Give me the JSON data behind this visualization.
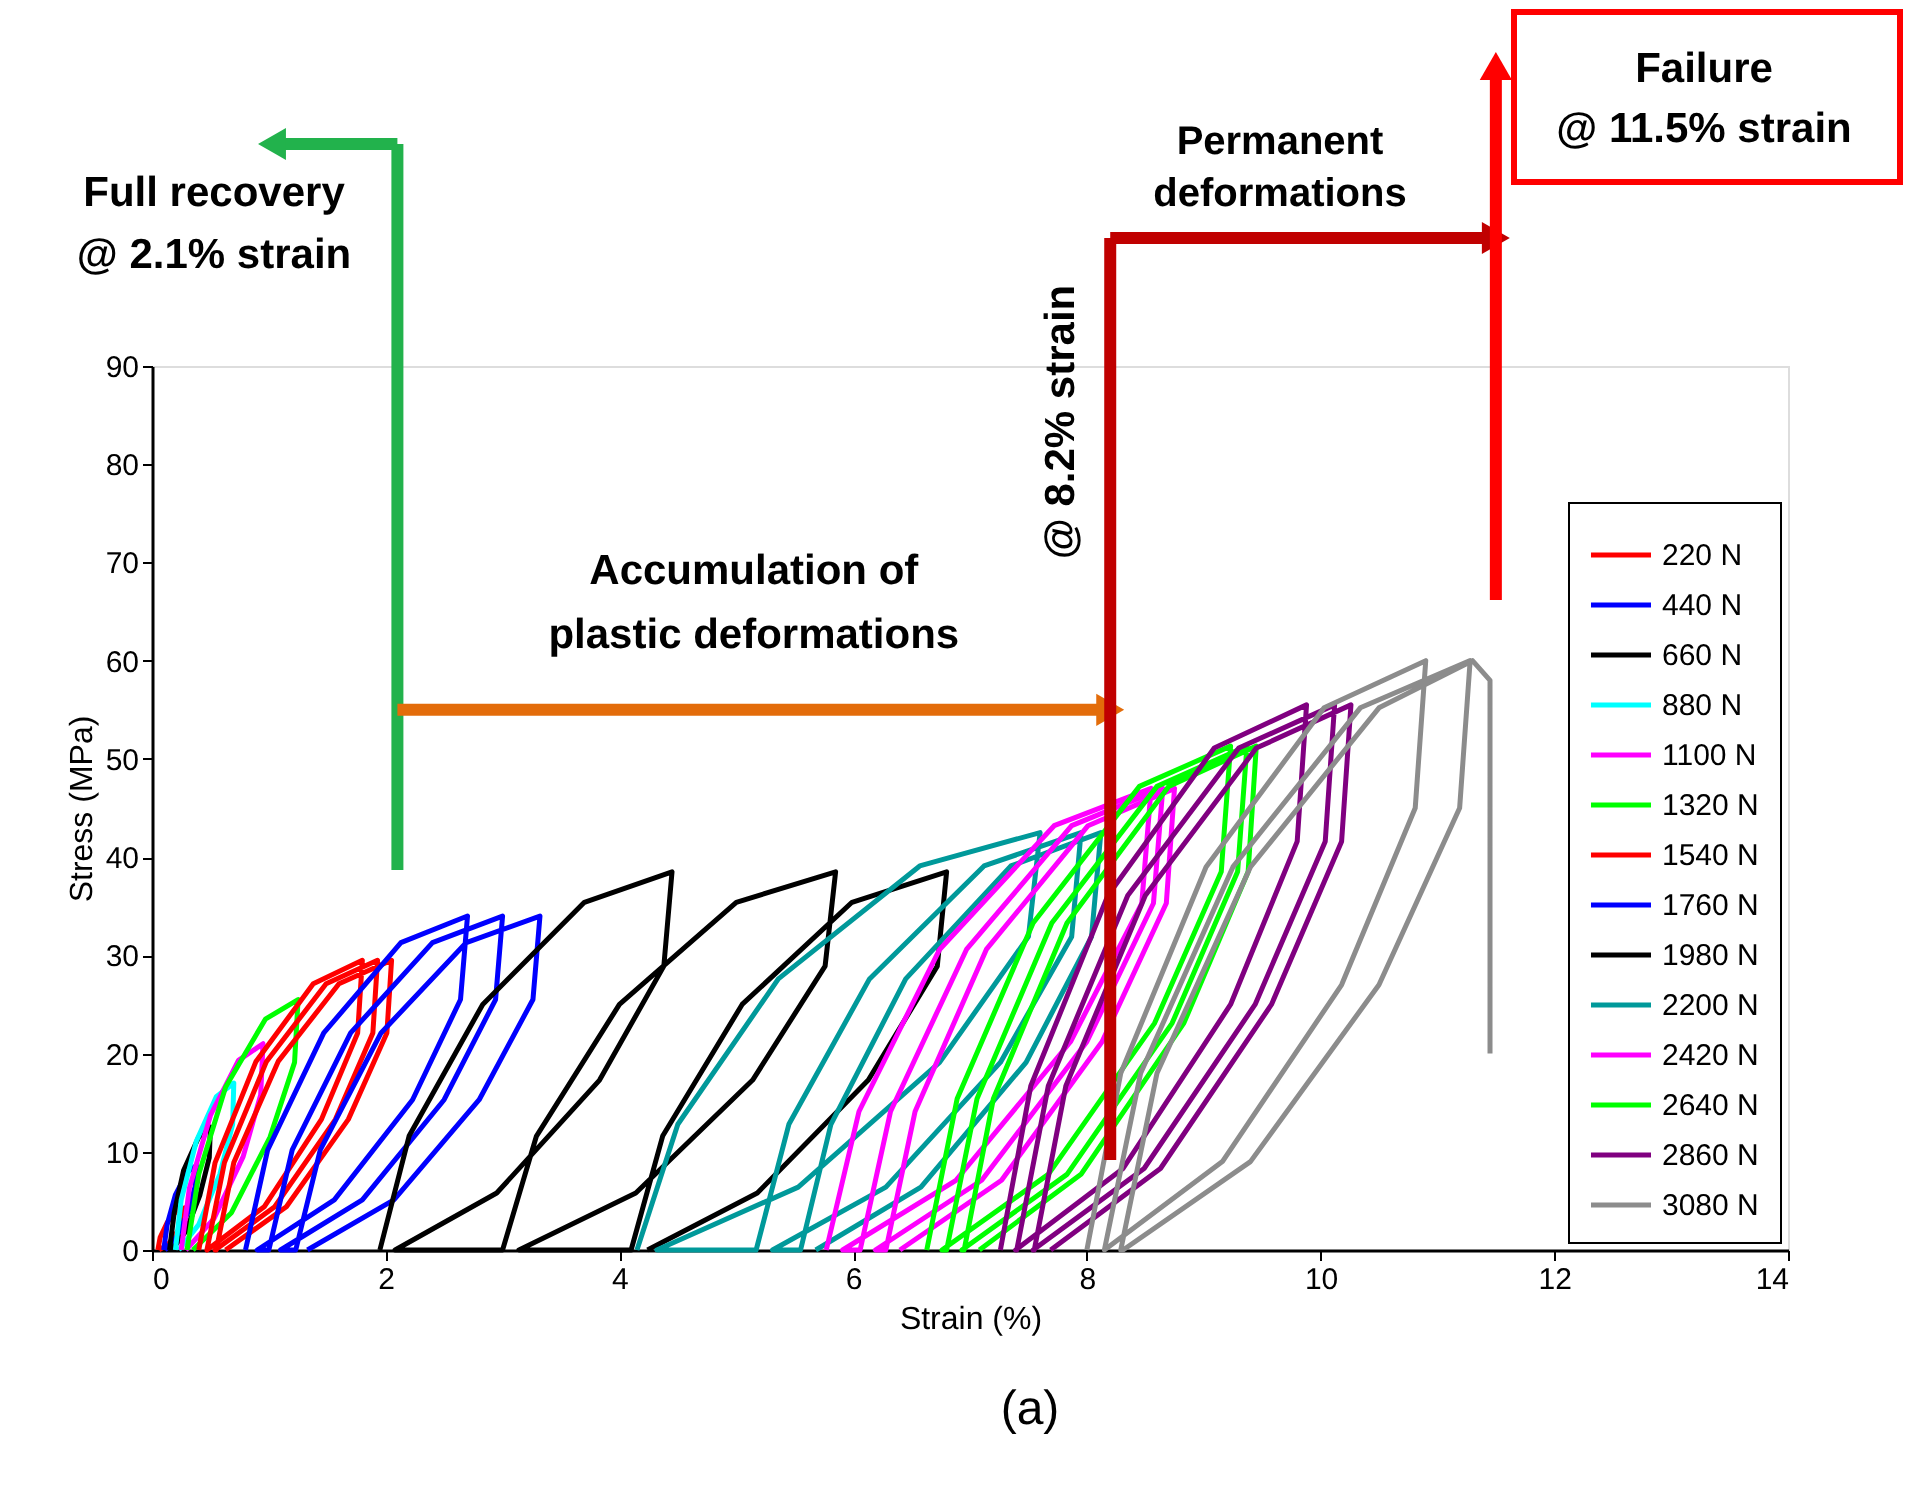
{
  "chart_data": {
    "type": "line",
    "xlabel": "Strain (%)",
    "ylabel": "Stress (MPa)",
    "xlim": [
      0,
      14
    ],
    "xticks": [
      0,
      2,
      4,
      6,
      8,
      10,
      12,
      14
    ],
    "ylim": [
      0,
      90
    ],
    "yticks": [
      0,
      10,
      20,
      30,
      40,
      50,
      60,
      70,
      80,
      90
    ],
    "grid": false,
    "legend": "bottom right",
    "series": [
      {
        "name": "220 N",
        "color": "#ff0000",
        "x": [
          0.05,
          0.07,
          0.13,
          0.21,
          0.28,
          0.27,
          0.22,
          0.14,
          0.06
        ],
        "values": [
          0,
          1.3,
          2.8,
          4.0,
          4.3,
          3.2,
          1.9,
          0.6,
          0
        ]
      },
      {
        "name": "440 N",
        "color": "#0000ff",
        "x": [
          0.1,
          0.13,
          0.2,
          0.3,
          0.38,
          0.37,
          0.31,
          0.21,
          0.11
        ],
        "values": [
          0,
          2.6,
          5.6,
          7.9,
          8.6,
          6.5,
          3.9,
          1.3,
          0
        ]
      },
      {
        "name": "660 N",
        "color": "#000000",
        "x": [
          0.15,
          0.19,
          0.27,
          0.4,
          0.5,
          0.49,
          0.41,
          0.29,
          0.17
        ],
        "values": [
          0,
          3.8,
          8.1,
          11.5,
          12.5,
          9.4,
          5.6,
          1.9,
          0
        ]
      },
      {
        "name": "880 N",
        "color": "#00ffff",
        "x": [
          0.2,
          0.25,
          0.38,
          0.55,
          0.7,
          0.69,
          0.58,
          0.4,
          0.23
        ],
        "values": [
          0,
          5.1,
          11.1,
          15.6,
          17,
          12.8,
          7.7,
          2.6,
          0
        ]
      },
      {
        "name": "1100 N",
        "color": "#ff00ff",
        "x": [
          0.25,
          0.32,
          0.5,
          0.74,
          0.95,
          0.93,
          0.78,
          0.53,
          0.29
        ],
        "values": [
          0,
          6.3,
          13.7,
          19.3,
          21,
          15.8,
          9.5,
          3.2,
          0
        ]
      },
      {
        "name": "1320 N",
        "color": "#00ff00",
        "x": [
          0.3,
          0.4,
          0.63,
          0.97,
          1.25,
          1.22,
          1.01,
          0.68,
          0.35
        ],
        "values": [
          0,
          7.7,
          16.6,
          23.5,
          25.5,
          19.1,
          11.5,
          3.8,
          0
        ]
      },
      {
        "name": "1540 N",
        "color": "#ff0000",
        "x": [
          0.4,
          0.54,
          0.89,
          1.38,
          1.8,
          1.76,
          1.45,
          0.96,
          0.47,
          0.47,
          0.62,
          0.98,
          1.49,
          1.93,
          1.89,
          1.57,
          1.05,
          0.54,
          0.55,
          0.7,
          1.08,
          1.6,
          2.05,
          2.01,
          1.68,
          1.15,
          0.63
        ],
        "values": [
          0,
          8.9,
          19.2,
          27.1,
          29.5,
          22.1,
          13.3,
          4.4,
          0,
          0,
          8.9,
          19.2,
          27.1,
          29.5,
          22.1,
          13.3,
          4.4,
          0,
          0,
          8.9,
          19.2,
          27.1,
          29.5,
          22.1,
          13.3,
          4.4,
          0
        ]
      },
      {
        "name": "1760 N",
        "color": "#0000ff",
        "x": [
          0.8,
          0.99,
          1.47,
          2.13,
          2.7,
          2.64,
          2.23,
          1.56,
          0.9,
          1.0,
          1.2,
          1.7,
          2.4,
          3.0,
          2.94,
          2.5,
          1.8,
          1.1,
          1.23,
          1.44,
          1.96,
          2.69,
          3.32,
          3.26,
          2.8,
          2.07,
          1.33
        ],
        "values": [
          0,
          10.2,
          22.1,
          31.3,
          34,
          25.5,
          15.3,
          5.1,
          0,
          0,
          10.2,
          22.1,
          31.3,
          34,
          25.5,
          15.3,
          5.1,
          0,
          0,
          10.2,
          22.1,
          31.3,
          34,
          25.5,
          15.3,
          5.1,
          0
        ]
      },
      {
        "name": "1980 N",
        "color": "#000000",
        "x": [
          1.95,
          2.2,
          2.83,
          3.7,
          4.45,
          4.38,
          3.83,
          2.95,
          2.08,
          3.0,
          3.29,
          4.0,
          5.0,
          5.85,
          5.76,
          5.14,
          4.14,
          3.14,
          4.1,
          4.37,
          5.05,
          5.99,
          6.8,
          6.72,
          6.13,
          5.18,
          4.24
        ],
        "values": [
          0,
          11.6,
          25,
          35.4,
          38.5,
          28.9,
          17.3,
          5.8,
          0,
          0,
          11.6,
          25,
          35.4,
          38.5,
          28.9,
          17.3,
          5.8,
          0,
          0,
          11.6,
          25,
          35.4,
          38.5,
          28.9,
          17.3,
          5.8,
          0
        ]
      },
      {
        "name": "2200 N",
        "color": "#00999a",
        "x": [
          4.15,
          4.5,
          5.36,
          6.57,
          7.6,
          7.5,
          6.74,
          5.53,
          4.32,
          5.17,
          5.45,
          6.14,
          7.12,
          7.95,
          7.87,
          7.26,
          6.28,
          5.31,
          5.55,
          5.81,
          6.45,
          7.35,
          8.12,
          8.04,
          7.48,
          6.58,
          5.68
        ],
        "values": [
          0,
          12.8,
          27.6,
          39.1,
          42.5,
          31.9,
          19.1,
          6.4,
          0,
          0,
          12.8,
          27.6,
          39.1,
          42.5,
          31.9,
          19.1,
          6.4,
          0,
          0,
          12.8,
          27.6,
          39.1,
          42.5,
          31.9,
          19.1,
          6.4,
          0
        ]
      },
      {
        "name": "2420 N",
        "color": "#ff00ff",
        "x": [
          5.77,
          6.05,
          6.74,
          7.72,
          8.55,
          8.47,
          7.86,
          6.88,
          5.91,
          6.06,
          6.32,
          6.97,
          7.87,
          8.65,
          8.57,
          8.0,
          7.1,
          6.19,
          6.28,
          6.53,
          7.14,
          8.01,
          8.75,
          8.68,
          8.13,
          7.27,
          6.4
        ],
        "values": [
          0,
          14.1,
          30.6,
          43.2,
          47,
          35.3,
          21.2,
          7.1,
          0,
          0,
          14.1,
          30.6,
          43.2,
          47,
          35.3,
          21.2,
          7.1,
          0,
          0,
          14.1,
          30.6,
          43.2,
          47,
          35.3,
          21.2,
          7.1,
          0
        ]
      },
      {
        "name": "2640 N",
        "color": "#00ff00",
        "x": [
          6.63,
          6.89,
          7.54,
          8.45,
          9.23,
          9.15,
          8.58,
          7.67,
          6.76,
          6.8,
          7.06,
          7.7,
          8.6,
          9.37,
          9.29,
          8.73,
          7.83,
          6.93,
          6.95,
          7.2,
          7.83,
          8.7,
          9.45,
          9.38,
          8.83,
          7.95,
          7.08
        ],
        "values": [
          0,
          15.4,
          33.3,
          47.2,
          51.3,
          38.5,
          23.1,
          7.7,
          0,
          0,
          15.4,
          33.3,
          47.2,
          51.3,
          38.5,
          23.1,
          7.7,
          0,
          0,
          15.4,
          33.3,
          47.2,
          51.3,
          38.5,
          23.1,
          7.7,
          0
        ]
      },
      {
        "name": "2860 N",
        "color": "#800080",
        "x": [
          7.26,
          7.52,
          8.18,
          9.09,
          9.88,
          9.8,
          9.23,
          8.31,
          7.39,
          7.4,
          7.67,
          8.35,
          9.3,
          10.12,
          10.04,
          9.44,
          8.49,
          7.54,
          7.55,
          7.82,
          8.5,
          9.45,
          10.26,
          10.18,
          9.58,
          8.63,
          7.69
        ],
        "values": [
          0,
          16.7,
          36.1,
          51.1,
          55.5,
          41.6,
          25,
          8.3,
          0,
          0,
          16.7,
          36.1,
          51.1,
          55.5,
          41.6,
          25,
          8.3,
          0,
          0,
          16.7,
          36.1,
          51.1,
          55.5,
          41.6,
          25,
          8.3,
          0
        ]
      },
      {
        "name": "3080 N",
        "color": "#8c8c8c",
        "x": [
          8.0,
          8.29,
          9.02,
          10.03,
          10.9,
          10.81,
          10.18,
          9.16,
          8.15,
          8.15,
          8.46,
          9.25,
          10.34,
          11.28,
          11.19,
          10.5,
          9.4,
          8.31,
          8.29,
          8.6,
          9.4,
          10.5,
          11.3,
          11.45,
          11.45
        ],
        "values": [
          0,
          18,
          39,
          55.2,
          60,
          45,
          27,
          9,
          0,
          0,
          18,
          39,
          55.2,
          60,
          45,
          27,
          9,
          0,
          0,
          18,
          39,
          55.2,
          60,
          58,
          20
        ]
      }
    ],
    "ref_lines": [
      {
        "axis": "x",
        "value": 2.1,
        "label": "Full recovery\n@ 2.1% strain",
        "color": "#22b24c"
      },
      {
        "axis": "y",
        "value": 55,
        "label": "Accumulation of\nplastic deformations",
        "color": "#e36c0a"
      },
      {
        "axis": "x",
        "value": 8.2,
        "label": "@ 8.2% strain",
        "color": "#c00000"
      },
      {
        "axis": "x",
        "value": 11.5,
        "label": "Failure\n@ 11.5% strain",
        "color": "#ff0000"
      }
    ],
    "annotations": [
      "Permanent\ndeformations",
      "(a)"
    ]
  }
}
